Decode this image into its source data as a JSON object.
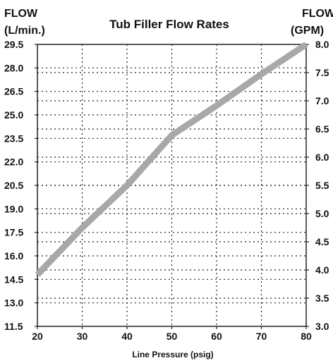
{
  "chart_data": {
    "type": "line",
    "title": "Tub Filler Flow Rates",
    "xlabel": "Line Pressure (psig)",
    "ylabel_left_line1": "FLOW",
    "ylabel_left_line2": "(L/min.)",
    "ylabel_right_line1": "FLOW",
    "ylabel_right_line2": "(GPM)",
    "x_ticks": [
      "20",
      "30",
      "40",
      "50",
      "60",
      "70",
      "80"
    ],
    "left_ticks": [
      "29.5",
      "28.0",
      "26.5",
      "25.0",
      "23.5",
      "22.0",
      "20.5",
      "19.0",
      "17.5",
      "16.0",
      "14.5",
      "13.0",
      "11.5"
    ],
    "right_ticks": [
      "8.0",
      "7.5",
      "7.0",
      "6.5",
      "6.0",
      "5.5",
      "5.0",
      "4.5",
      "4.0",
      "3.5",
      "3.0"
    ],
    "xlim": [
      20,
      80
    ],
    "ylim_left": [
      11.5,
      29.5
    ],
    "ylim_right": [
      3.0,
      8.0
    ],
    "grid": true,
    "series": [
      {
        "axis": "left",
        "color": "#a8a8a8",
        "x": [
          20,
          30,
          40,
          50,
          60,
          70,
          80
        ],
        "y": [
          14.8,
          17.8,
          20.5,
          23.7,
          25.6,
          27.6,
          29.5
        ]
      }
    ]
  }
}
